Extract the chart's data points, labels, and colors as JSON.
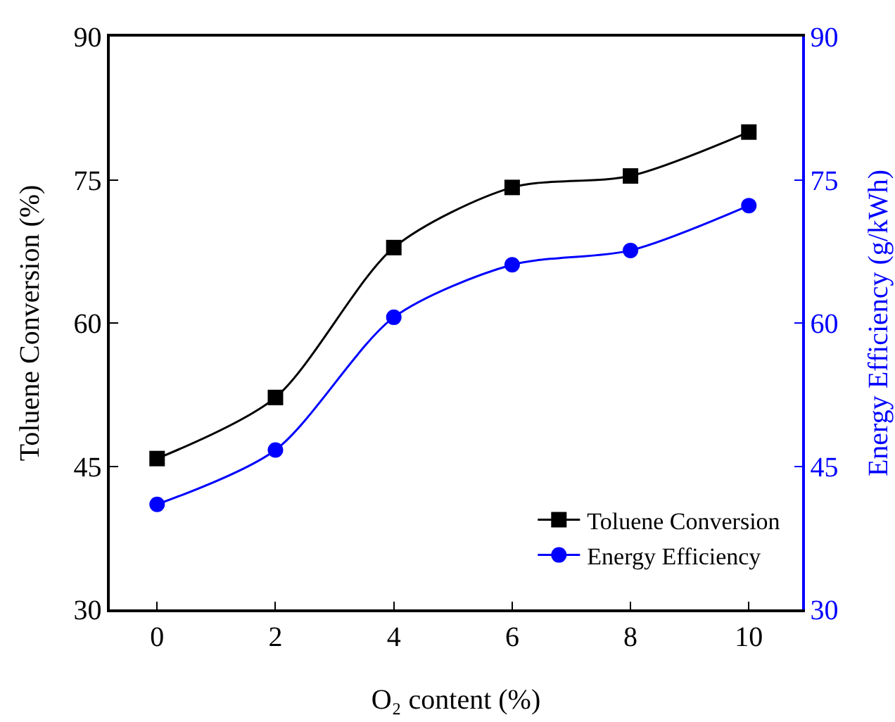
{
  "chart_data": {
    "type": "line",
    "xlabel": "O₂ content (%)",
    "ylabel": "Toluene Conversion (%)",
    "y2label": "Energy Efficiency (g/kWh)",
    "x": [
      0,
      2,
      4,
      6,
      8,
      10
    ],
    "series": [
      {
        "name": "Toluene Conversion",
        "color": "#000000",
        "marker": "square",
        "values": [
          45.8,
          52.2,
          67.9,
          74.2,
          75.4,
          80.0
        ]
      },
      {
        "name": "Energy Efficiency",
        "color": "#0000ff",
        "marker": "circle",
        "axis": "y2",
        "values": [
          41.0,
          46.7,
          60.6,
          66.1,
          67.6,
          72.3
        ]
      }
    ],
    "xlim": [
      -0.8,
      10.9
    ],
    "xticks": [
      0,
      2,
      4,
      6,
      8,
      10
    ],
    "ylim": [
      30,
      90
    ],
    "yticks": [
      30,
      45,
      60,
      75,
      90
    ],
    "y2lim": [
      30,
      90
    ],
    "y2ticks": [
      30,
      45,
      60,
      75,
      90
    ],
    "grid": false,
    "legend": "bottom right",
    "line_style": "solid"
  }
}
